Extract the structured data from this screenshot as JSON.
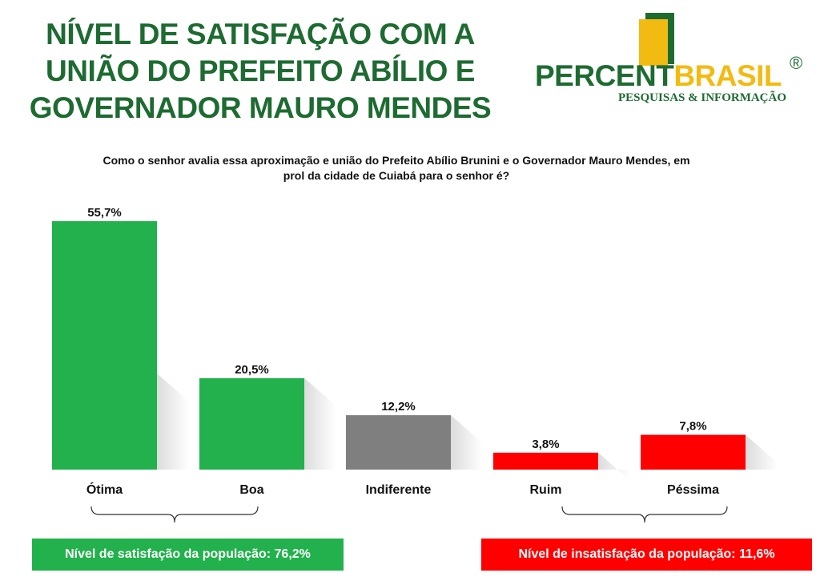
{
  "title": "NÍVEL DE SATISFAÇÃO COM A UNIÃO DO PREFEITO ABÍLIO E GOVERNADOR MAURO MENDES",
  "logo": {
    "name_part1": "PERCENT",
    "name_part2": "BRASIL",
    "registered": "®",
    "subtitle": "PESQUISAS & INFORMAÇÃO"
  },
  "question": "Como o senhor avalia essa aproximação e união do Prefeito Abílio Brunini e o Governador Mauro Mendes, em prol da cidade de Cuiabá para o senhor é?",
  "chart_data": {
    "type": "bar",
    "categories": [
      "Ótima",
      "Boa",
      "Indiferente",
      "Ruim",
      "Péssima"
    ],
    "values": [
      55.7,
      20.5,
      12.2,
      3.8,
      7.8
    ],
    "data_labels": [
      "55,7%",
      "20,5%",
      "12,2%",
      "3,8%",
      "7,8%"
    ],
    "colors": [
      "#22b14c",
      "#22b14c",
      "#7f7f7f",
      "#ff0000",
      "#ff0000"
    ],
    "ylim": [
      0,
      55.7
    ],
    "grid": false,
    "title": "",
    "xlabel": "",
    "ylabel": ""
  },
  "callouts": {
    "satisfaction": "Nível de satisfação da população: 76,2%",
    "dissatisfaction": "Nível de insatisfação da população: 11,6%"
  },
  "colors": {
    "title_green": "#1e6b32",
    "bar_green": "#22b14c",
    "bar_gray": "#7f7f7f",
    "bar_red": "#ff0000",
    "logo_yellow": "#f2bb12"
  }
}
